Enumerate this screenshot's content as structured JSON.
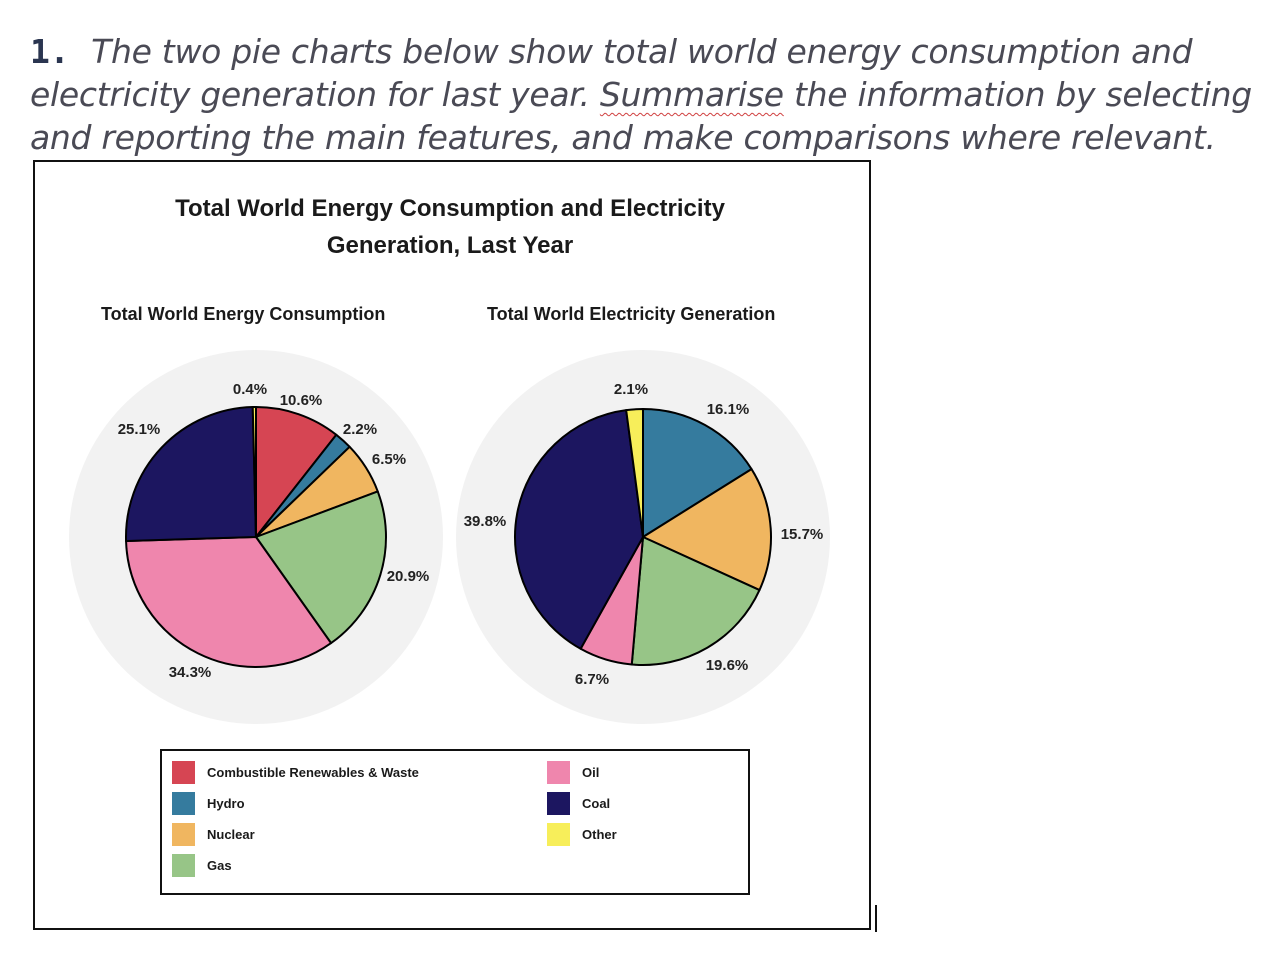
{
  "question": {
    "number": "1.",
    "text_before": "The two pie charts below show total world energy consumption and electricity generation for last year.",
    "text_flagged": "Summarise",
    "text_after": "the information by selecting and reporting the main features, and make comparisons where relevant."
  },
  "chart_data": [
    {
      "type": "pie",
      "title": "Total World Energy Consumption",
      "slices": [
        {
          "label": "Combustible Renewables & Waste",
          "value": 10.6,
          "color": "#d64553",
          "display": "10.6%"
        },
        {
          "label": "Hydro",
          "value": 2.2,
          "color": "#357b9e",
          "display": "2.2%"
        },
        {
          "label": "Nuclear",
          "value": 6.5,
          "color": "#f0b660",
          "display": "6.5%"
        },
        {
          "label": "Gas",
          "value": 20.9,
          "color": "#97c587",
          "display": "20.9%"
        },
        {
          "label": "Oil",
          "value": 34.3,
          "color": "#ef86ad",
          "display": "34.3%"
        },
        {
          "label": "Coal",
          "value": 25.1,
          "color": "#1c1660",
          "display": "25.1%"
        },
        {
          "label": "Other",
          "value": 0.4,
          "color": "#f7ee5a",
          "display": "0.4%"
        }
      ]
    },
    {
      "type": "pie",
      "title": "Total World Electricity Generation",
      "slices": [
        {
          "label": "Combustible Renewables & Waste",
          "value": 0,
          "color": "#d64553",
          "display": ""
        },
        {
          "label": "Hydro",
          "value": 16.1,
          "color": "#357b9e",
          "display": "16.1%"
        },
        {
          "label": "Nuclear",
          "value": 15.7,
          "color": "#f0b660",
          "display": "15.7%"
        },
        {
          "label": "Gas",
          "value": 19.6,
          "color": "#97c587",
          "display": "19.6%"
        },
        {
          "label": "Oil",
          "value": 6.7,
          "color": "#ef86ad",
          "display": "6.7%"
        },
        {
          "label": "Coal",
          "value": 39.8,
          "color": "#1c1660",
          "display": "39.8%"
        },
        {
          "label": "Other",
          "value": 2.1,
          "color": "#f7ee5a",
          "display": "2.1%"
        }
      ]
    }
  ],
  "figure": {
    "title": "Total World Energy Consumption and Electricity Generation, Last Year",
    "background_disc_color": "#f2f2f2"
  },
  "legend": {
    "placement": "bottom",
    "items": [
      {
        "label": "Combustible Renewables & Waste",
        "color": "#d64553"
      },
      {
        "label": "Hydro",
        "color": "#357b9e"
      },
      {
        "label": "Nuclear",
        "color": "#f0b660"
      },
      {
        "label": "Gas",
        "color": "#97c587"
      },
      {
        "label": "Oil",
        "color": "#ef86ad"
      },
      {
        "label": "Coal",
        "color": "#1c1660"
      },
      {
        "label": "Other",
        "color": "#f7ee5a"
      }
    ]
  }
}
